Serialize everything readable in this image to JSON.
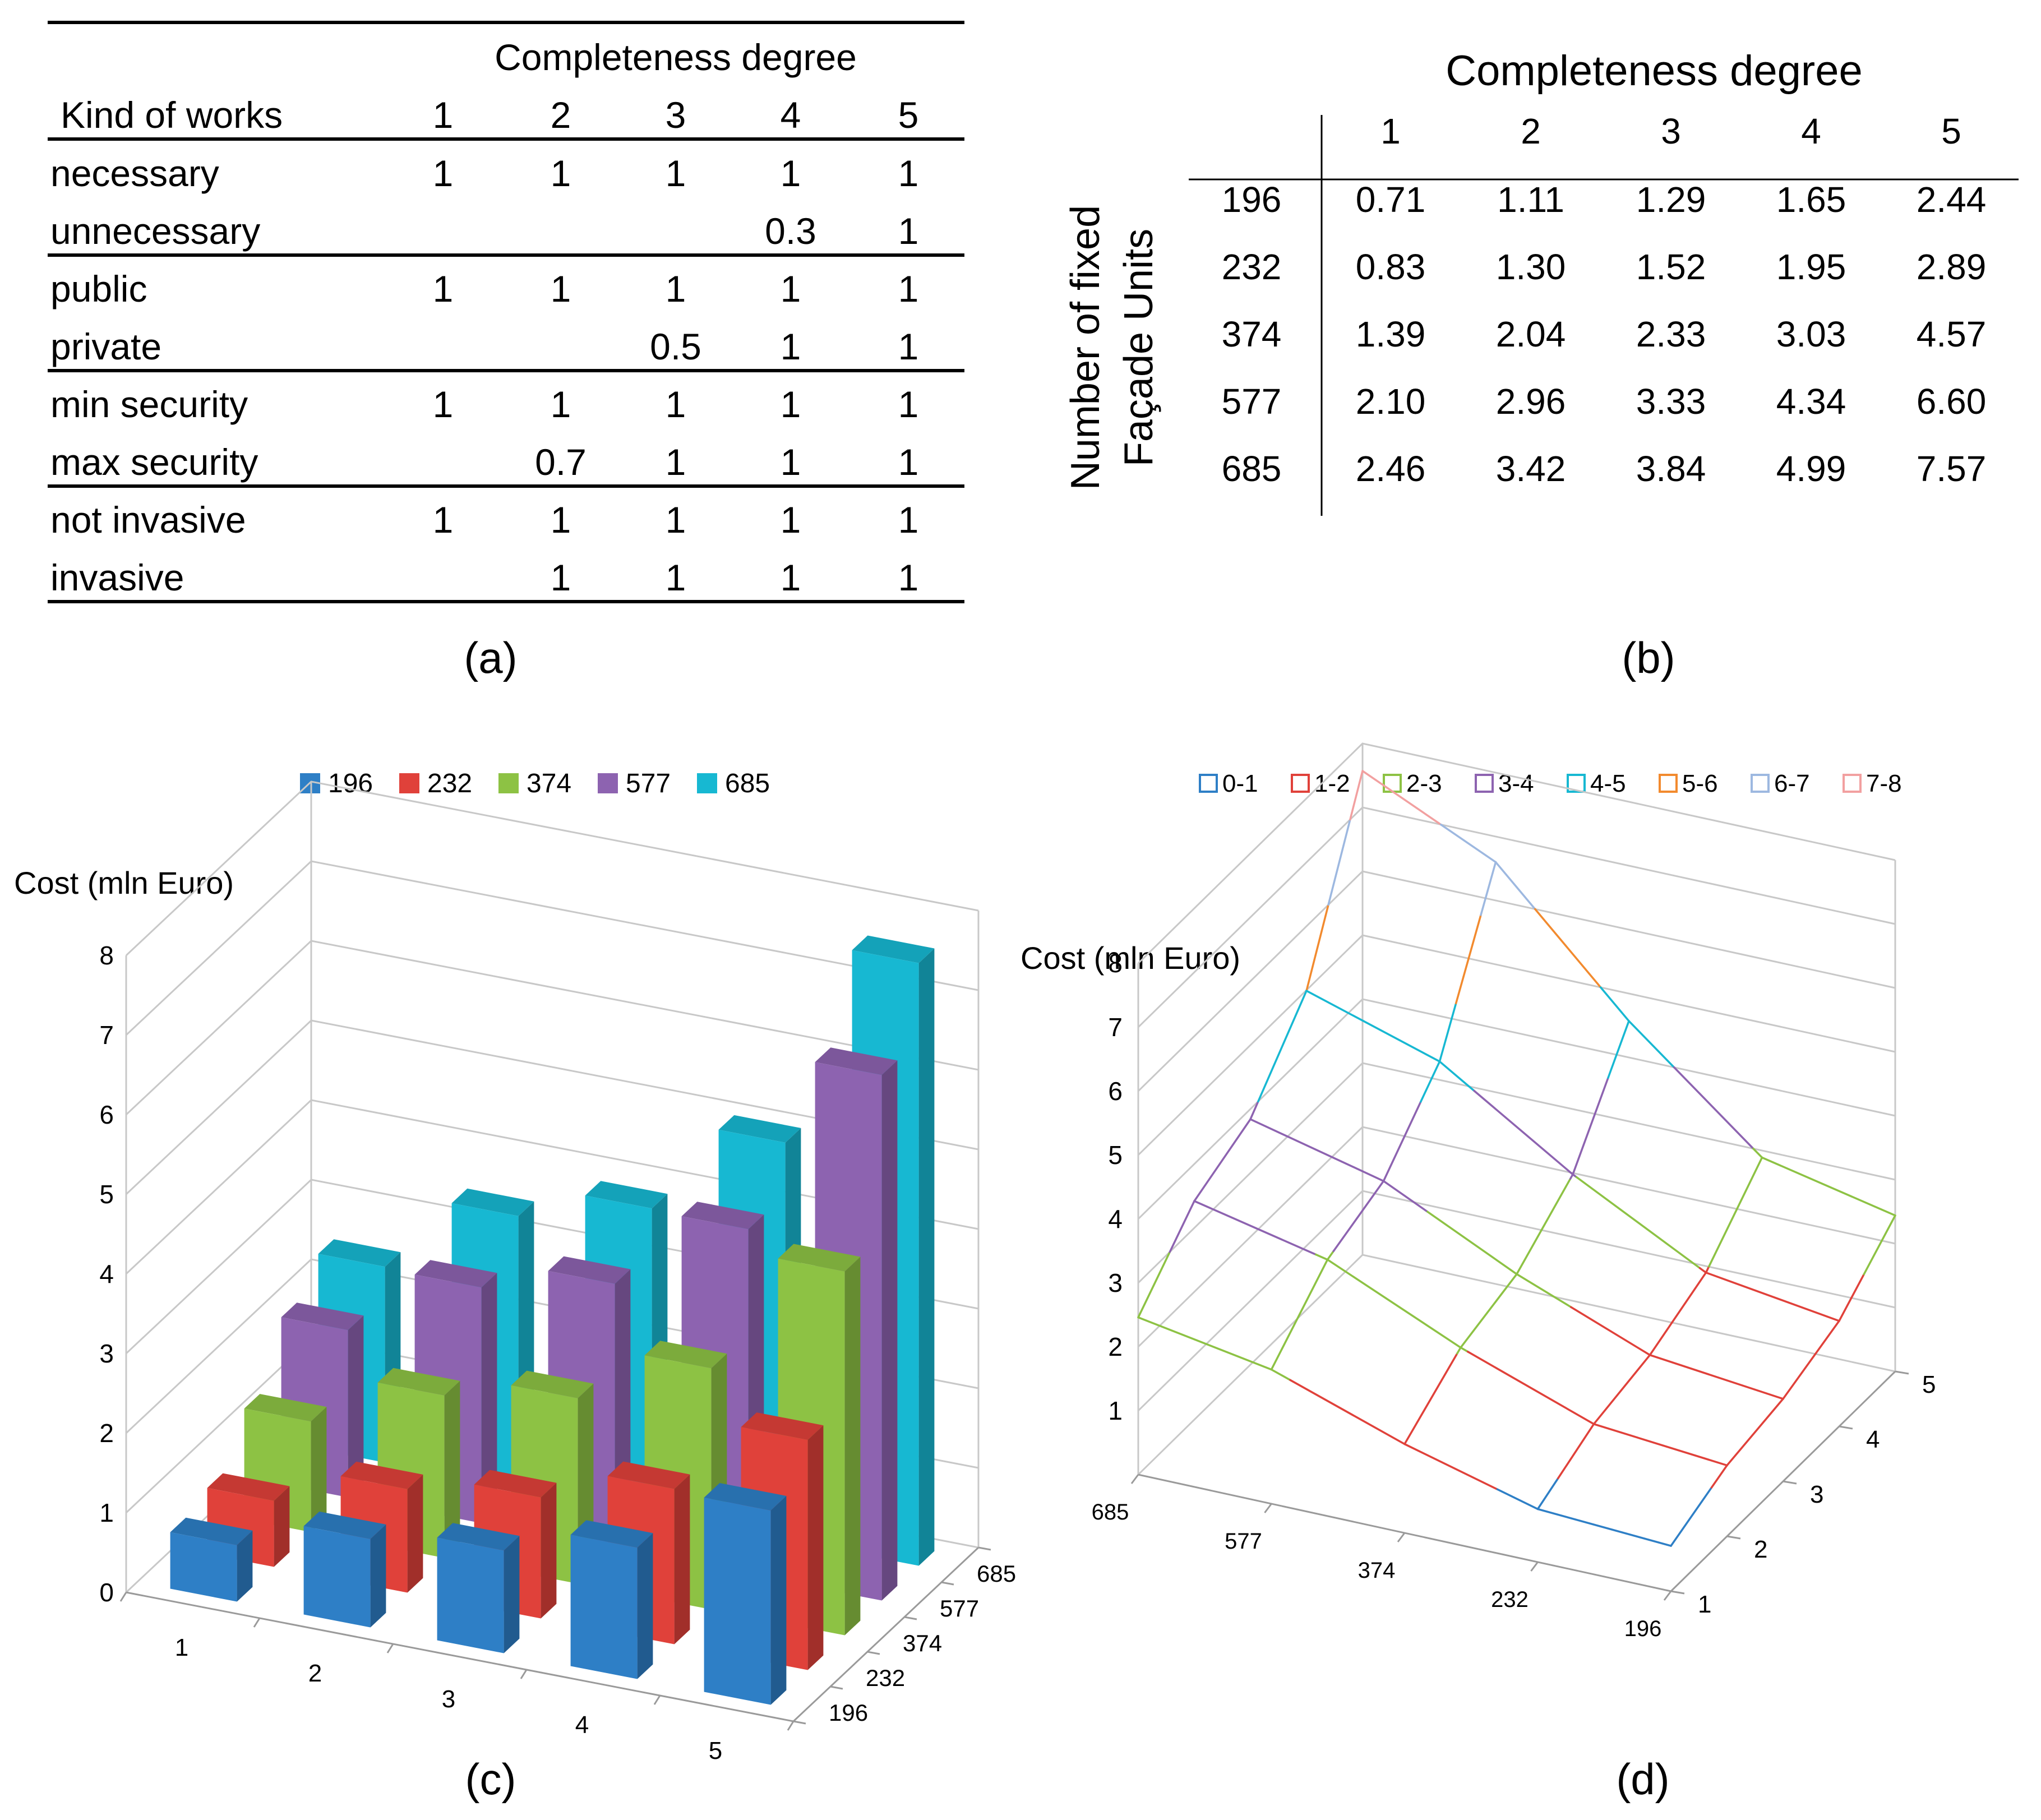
{
  "panels": {
    "a": {
      "caption": "(a)",
      "header_group": "Completeness degree",
      "row_header": "Kind of works",
      "degrees": [
        "1",
        "2",
        "3",
        "4",
        "5"
      ],
      "rows": [
        {
          "label": "necessary",
          "values": [
            "1",
            "1",
            "1",
            "1",
            "1"
          ]
        },
        {
          "label": "unnecessary",
          "values": [
            "",
            "",
            "",
            "0.3",
            "1"
          ]
        },
        {
          "label": "public",
          "values": [
            "1",
            "1",
            "1",
            "1",
            "1"
          ]
        },
        {
          "label": "private",
          "values": [
            "",
            "",
            "0.5",
            "1",
            "1"
          ]
        },
        {
          "label": "min security",
          "values": [
            "1",
            "1",
            "1",
            "1",
            "1"
          ]
        },
        {
          "label": "max security",
          "values": [
            "",
            "0.7",
            "1",
            "1",
            "1"
          ]
        },
        {
          "label": "not invasive",
          "values": [
            "1",
            "1",
            "1",
            "1",
            "1"
          ]
        },
        {
          "label": "invasive",
          "values": [
            "",
            "1",
            "1",
            "1",
            "1"
          ]
        }
      ]
    },
    "b": {
      "caption": "(b)",
      "header_group": "Completeness degree",
      "axis_label_line1": "Number of fixed",
      "axis_label_line2": "Façade Units",
      "degrees": [
        "1",
        "2",
        "3",
        "4",
        "5"
      ],
      "rows": [
        {
          "units": "196",
          "values": [
            "0.71",
            "1.11",
            "1.29",
            "1.65",
            "2.44"
          ]
        },
        {
          "units": "232",
          "values": [
            "0.83",
            "1.30",
            "1.52",
            "1.95",
            "2.89"
          ]
        },
        {
          "units": "374",
          "values": [
            "1.39",
            "2.04",
            "2.33",
            "3.03",
            "4.57"
          ]
        },
        {
          "units": "577",
          "values": [
            "2.10",
            "2.96",
            "3.33",
            "4.34",
            "6.60"
          ]
        },
        {
          "units": "685",
          "values": [
            "2.46",
            "3.42",
            "3.84",
            "4.99",
            "7.57"
          ]
        }
      ]
    },
    "c": {
      "caption": "(c)"
    },
    "d": {
      "caption": "(d)"
    }
  },
  "chart_data": [
    {
      "type": "bar",
      "variant": "3d-column",
      "ylabel": "Cost (mln Euro)",
      "x_label_values": [
        "1",
        "2",
        "3",
        "4",
        "5"
      ],
      "z_label_values": [
        "196",
        "232",
        "374",
        "577",
        "685"
      ],
      "ylim": [
        0,
        8
      ],
      "y_ticks": [
        "0",
        "1",
        "2",
        "3",
        "4",
        "5",
        "6",
        "7",
        "8"
      ],
      "legend_position": "top",
      "series": [
        {
          "name": "196",
          "color": "#2e7fc6",
          "values": [
            0.71,
            1.11,
            1.29,
            1.65,
            2.44
          ]
        },
        {
          "name": "232",
          "color": "#e0413a",
          "values": [
            0.83,
            1.3,
            1.52,
            1.95,
            2.89
          ]
        },
        {
          "name": "374",
          "color": "#8dc244",
          "values": [
            1.39,
            2.04,
            2.33,
            3.03,
            4.57
          ]
        },
        {
          "name": "577",
          "color": "#8d63b0",
          "values": [
            2.1,
            2.96,
            3.33,
            4.34,
            6.6
          ]
        },
        {
          "name": "685",
          "color": "#17b8d2",
          "values": [
            2.46,
            3.42,
            3.84,
            4.99,
            7.57
          ]
        }
      ]
    },
    {
      "type": "surface",
      "variant": "3d-wireframe",
      "ylabel": "Cost (mln Euro)",
      "x_label_values": [
        "685",
        "577",
        "374",
        "232",
        "196"
      ],
      "z_label_values": [
        "1",
        "2",
        "3",
        "4",
        "5"
      ],
      "ylim": [
        0,
        8
      ],
      "y_ticks": [
        "1",
        "2",
        "3",
        "4",
        "5",
        "6",
        "7",
        "8"
      ],
      "legend_position": "top",
      "legend": [
        {
          "name": "0-1",
          "color": "#2e7fc6"
        },
        {
          "name": "1-2",
          "color": "#e0413a"
        },
        {
          "name": "2-3",
          "color": "#8dc244"
        },
        {
          "name": "3-4",
          "color": "#8d63b0"
        },
        {
          "name": "4-5",
          "color": "#17b8d2"
        },
        {
          "name": "5-6",
          "color": "#f28a2e"
        },
        {
          "name": "6-7",
          "color": "#9db8e0"
        },
        {
          "name": "7-8",
          "color": "#f2a0a0"
        }
      ],
      "units": [
        196,
        232,
        374,
        577,
        685
      ],
      "degrees": [
        1,
        2,
        3,
        4,
        5
      ],
      "z": [
        [
          0.71,
          1.11,
          1.29,
          1.65,
          2.44
        ],
        [
          0.83,
          1.3,
          1.52,
          1.95,
          2.89
        ],
        [
          1.39,
          2.04,
          2.33,
          3.03,
          4.57
        ],
        [
          2.1,
          2.96,
          3.33,
          4.34,
          6.6
        ],
        [
          2.46,
          3.42,
          3.84,
          4.99,
          7.57
        ]
      ]
    }
  ]
}
